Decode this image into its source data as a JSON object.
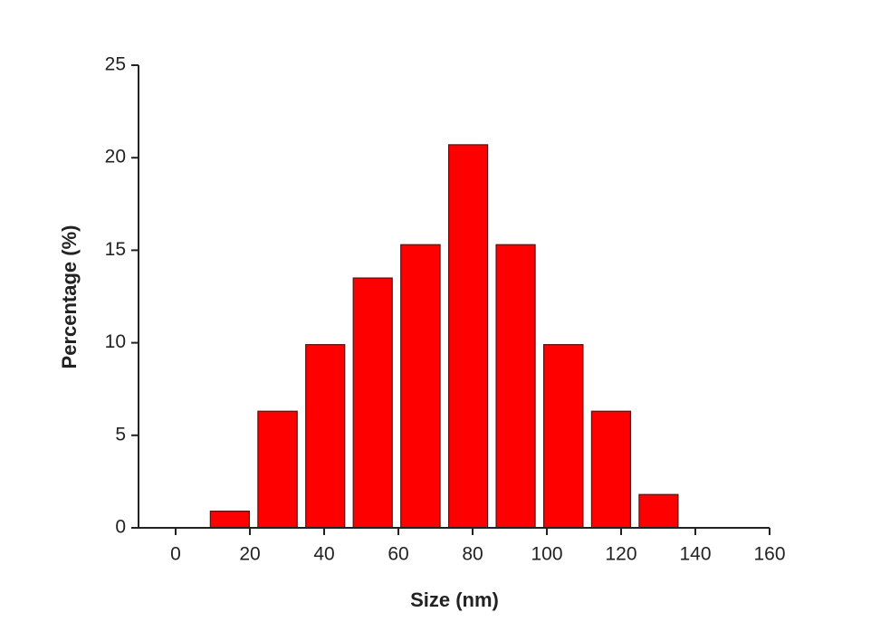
{
  "chart_data": {
    "type": "histogram",
    "xlabel": "Size (nm)",
    "ylabel": "Percentage (%)",
    "bins": [
      8.2,
      21,
      33.9,
      46.7,
      59.5,
      72.4,
      85.2,
      98,
      110.9,
      123.7,
      136.5
    ],
    "values": [
      0.9,
      6.3,
      9.9,
      13.5,
      15.3,
      20.7,
      15.3,
      9.9,
      6.3,
      1.8
    ],
    "color": "#ff0000",
    "xlim": [
      -10,
      160
    ],
    "xticks": [
      0,
      20,
      40,
      60,
      80,
      100,
      120,
      140,
      160
    ],
    "ylim": [
      0,
      25
    ],
    "yticks": [
      0,
      5,
      10,
      15,
      20,
      25
    ]
  }
}
